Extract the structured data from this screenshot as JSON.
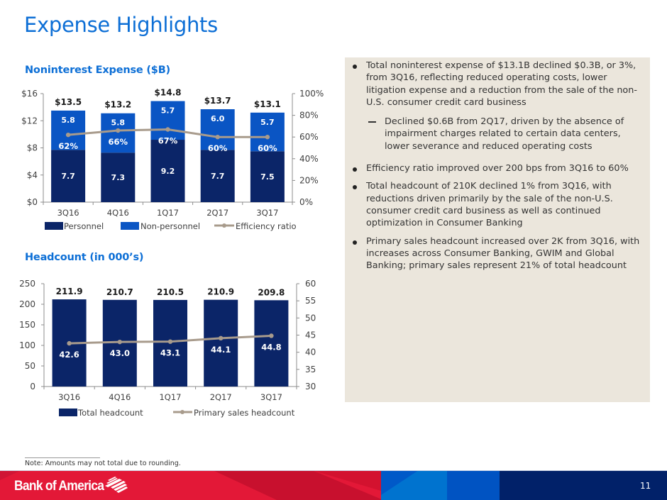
{
  "page": {
    "title": "Expense Highlights",
    "page_number": "11",
    "note": "Note: Amounts may not total due to rounding.",
    "brand": "Bank of America"
  },
  "colors": {
    "title_blue": "#0d6fd6",
    "personnel": "#0b2568",
    "non_personnel": "#0a55c4",
    "line": "#a89b8c",
    "panel_bg": "#ebe6dc",
    "footer_red": "#e31837",
    "footer_dark_red": "#c8102e",
    "footer_light_blue": "#0073cf",
    "footer_mid_blue": "#0053c2",
    "footer_navy": "#012169"
  },
  "bullets": {
    "b1": "Total noninterest expense of $13.1B declined $0.3B, or 3%, from 3Q16, reflecting reduced operating costs, lower litigation expense and a reduction from the sale of the non-U.S. consumer credit card business",
    "b1_sub": "Declined $0.6B from 2Q17, driven by the absence of impairment charges related to certain data centers, lower severance and reduced operating costs",
    "b2": "Efficiency ratio improved over 200 bps from 3Q16 to 60%",
    "b3": "Total headcount of 210K declined 1% from 3Q16, with reductions driven primarily by the sale of the non-U.S. consumer credit card business as well as continued optimization in Consumer Banking",
    "b4": "Primary sales headcount increased over 2K from 3Q16, with increases across Consumer Banking, GWIM and Global Banking; primary sales represent 21% of total headcount"
  },
  "chart_data": [
    {
      "type": "bar",
      "stacked": true,
      "title": "Noninterest Expense ($B)",
      "categories": [
        "3Q16",
        "4Q16",
        "1Q17",
        "2Q17",
        "3Q17"
      ],
      "series": [
        {
          "name": "Personnel",
          "axis": "left",
          "values": [
            7.7,
            7.3,
            9.2,
            7.7,
            7.5
          ],
          "labels": [
            "7.7",
            "7.3",
            "9.2",
            "7.7",
            "7.5"
          ]
        },
        {
          "name": "Non-personnel",
          "axis": "left",
          "values": [
            5.8,
            5.8,
            5.7,
            6.0,
            5.7
          ],
          "labels": [
            "5.8",
            "5.8",
            "5.7",
            "6.0",
            "5.7"
          ]
        },
        {
          "name": "Efficiency ratio",
          "type": "line",
          "axis": "right",
          "values": [
            62,
            66,
            67,
            60,
            60
          ],
          "labels": [
            "62%",
            "66%",
            "67%",
            "60%",
            "60%"
          ]
        }
      ],
      "totals": [
        13.5,
        13.2,
        14.8,
        13.7,
        13.1
      ],
      "total_labels": [
        "$13.5",
        "$13.2",
        "$14.8",
        "$13.7",
        "$13.1"
      ],
      "ylim": [
        0,
        16
      ],
      "yticks": [
        "$0",
        "$4",
        "$8",
        "$12",
        "$16"
      ],
      "y2lim": [
        0,
        100
      ],
      "y2ticks": [
        "0%",
        "20%",
        "40%",
        "60%",
        "80%",
        "100%"
      ],
      "legend": [
        "Personnel",
        "Non-personnel",
        "Efficiency ratio"
      ],
      "legend_position": "bottom",
      "grid": false
    },
    {
      "type": "bar",
      "title": "Headcount (in 000’s)",
      "categories": [
        "3Q16",
        "4Q16",
        "1Q17",
        "2Q17",
        "3Q17"
      ],
      "series": [
        {
          "name": "Total headcount",
          "axis": "left",
          "values": [
            211.9,
            210.7,
            210.5,
            210.9,
            209.8
          ],
          "labels": [
            "211.9",
            "210.7",
            "210.5",
            "210.9",
            "209.8"
          ]
        },
        {
          "name": "Primary sales headcount",
          "type": "line",
          "axis": "right",
          "values": [
            42.6,
            43.0,
            43.1,
            44.1,
            44.8
          ],
          "labels": [
            "42.6",
            "43.0",
            "43.1",
            "44.1",
            "44.8"
          ]
        }
      ],
      "ylim": [
        0,
        250
      ],
      "yticks": [
        "0",
        "50",
        "100",
        "150",
        "200",
        "250"
      ],
      "y2lim": [
        30,
        60
      ],
      "y2ticks": [
        "30",
        "35",
        "40",
        "45",
        "50",
        "55",
        "60"
      ],
      "legend": [
        "Total headcount",
        "Primary sales headcount"
      ],
      "legend_position": "bottom",
      "grid": false
    }
  ]
}
